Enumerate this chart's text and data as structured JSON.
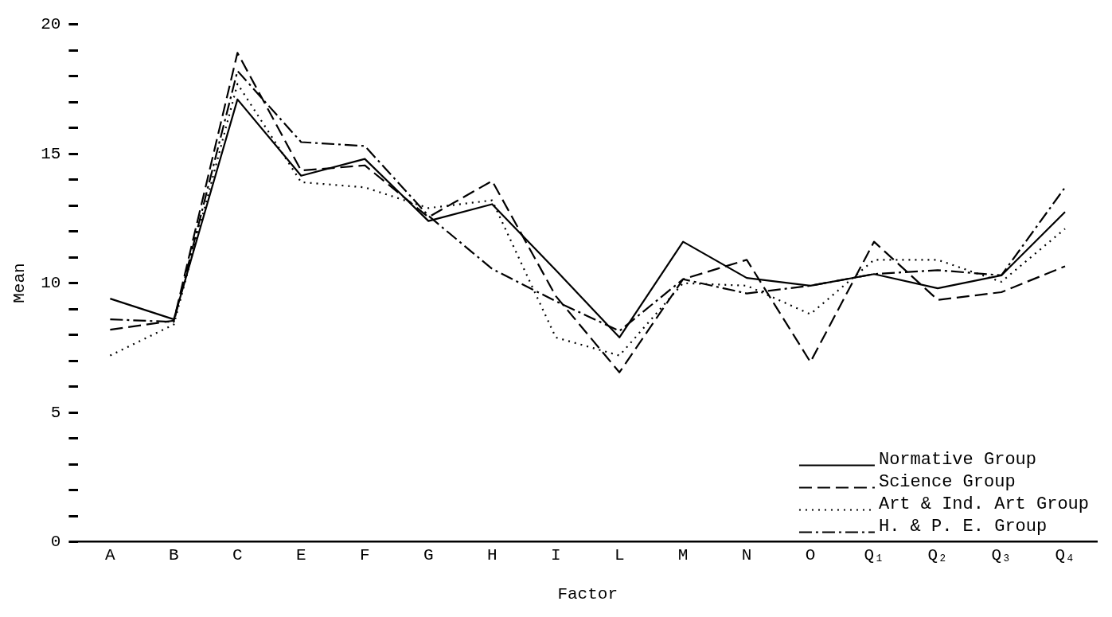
{
  "chart_data": {
    "type": "line",
    "xlabel": "Factor",
    "ylabel": "Mean",
    "categories": [
      "A",
      "B",
      "C",
      "E",
      "F",
      "G",
      "H",
      "I",
      "L",
      "M",
      "N",
      "O",
      "Q₁",
      "Q₂",
      "Q₃",
      "Q₄"
    ],
    "series": [
      {
        "name": "Normative Group",
        "color": "#000000",
        "line_style": "solid",
        "values": [
          9.4,
          8.6,
          17.1,
          14.15,
          14.8,
          12.4,
          13.05,
          10.5,
          7.9,
          11.6,
          10.2,
          9.9,
          10.35,
          9.8,
          10.3,
          12.75
        ]
      },
      {
        "name": "Science Group",
        "color": "#000000",
        "line_style": "dashed",
        "values": [
          8.2,
          8.55,
          18.9,
          14.35,
          14.55,
          12.55,
          13.95,
          9.5,
          6.55,
          10.15,
          10.9,
          6.95,
          11.6,
          9.35,
          9.65,
          10.65
        ]
      },
      {
        "name": "Art & Ind. Art Group",
        "color": "#000000",
        "line_style": "dotted",
        "values": [
          7.2,
          8.4,
          17.7,
          13.9,
          13.7,
          12.9,
          13.2,
          7.9,
          7.2,
          10.0,
          9.9,
          8.8,
          10.9,
          10.9,
          10.05,
          12.1
        ]
      },
      {
        "name": "H. & P. E. Group",
        "color": "#000000",
        "line_style": "dashdot",
        "values": [
          8.6,
          8.5,
          18.2,
          15.45,
          15.3,
          12.6,
          10.55,
          9.3,
          8.15,
          10.15,
          9.6,
          9.9,
          10.35,
          10.5,
          10.3,
          13.7
        ]
      }
    ],
    "ylim": [
      0,
      20
    ],
    "yticks": [
      0,
      {
        "value": 1,
        "label": null
      },
      {
        "value": 2,
        "label": null
      },
      {
        "value": 3,
        "label": null
      },
      {
        "value": 4,
        "label": null
      },
      5,
      {
        "value": 6,
        "label": null
      },
      {
        "value": 7,
        "label": null
      },
      {
        "value": 8,
        "label": null
      },
      {
        "value": 9,
        "label": null
      },
      10,
      {
        "value": 11,
        "label": null
      },
      {
        "value": 12,
        "label": null
      },
      {
        "value": 13,
        "label": null
      },
      {
        "value": 14,
        "label": null
      },
      15,
      {
        "value": 16,
        "label": null
      },
      {
        "value": 17,
        "label": null
      },
      {
        "value": 18,
        "label": null
      },
      {
        "value": 19,
        "label": null
      },
      20
    ],
    "grid": false,
    "legend": "bottom right",
    "marker": "none"
  }
}
